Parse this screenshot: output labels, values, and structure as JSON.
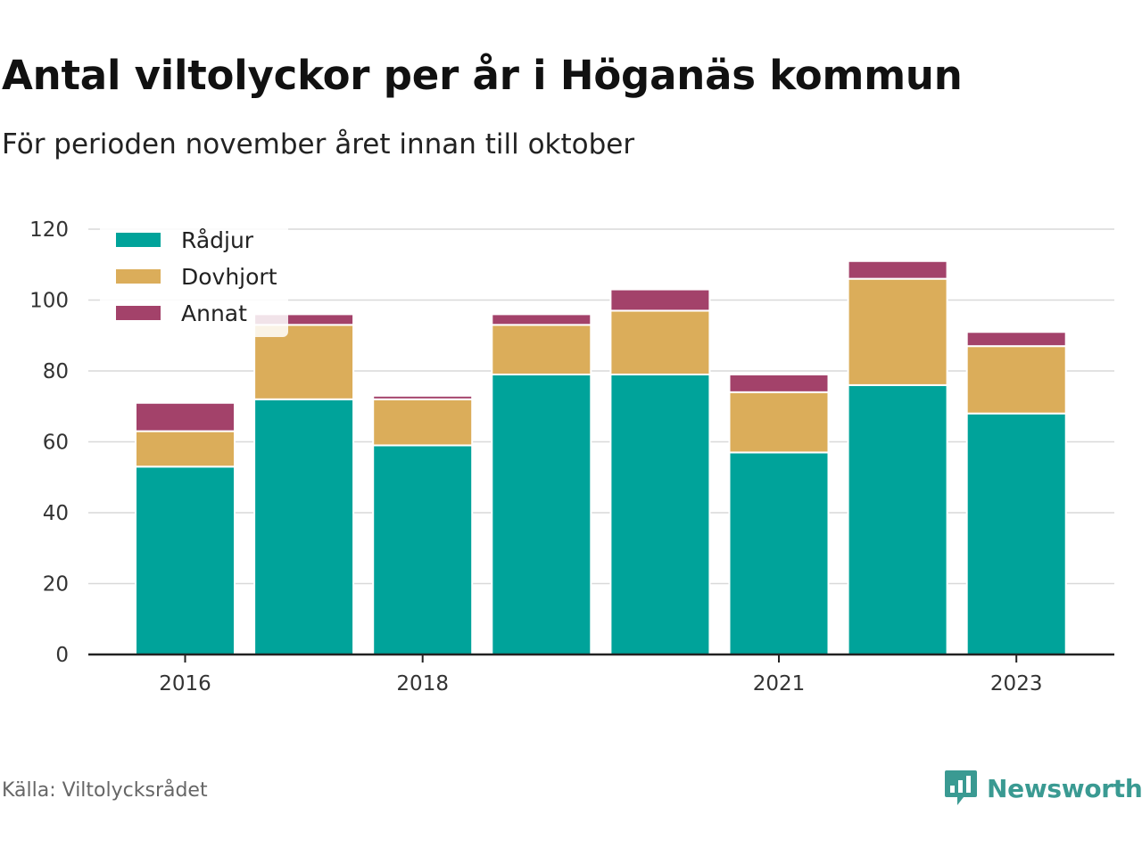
{
  "title": "Antal viltolyckor per år i Höganäs kommun",
  "subtitle": "För perioden november året innan till oktober",
  "source": "Källa: Viltolycksrådet",
  "brand": {
    "name": "Newsworthy",
    "logo_icon": "bar-chart-speech-bubble-icon"
  },
  "colors": {
    "Rådjur": "#00a39a",
    "Dovhjort": "#dbad5a",
    "Annat": "#a3426a",
    "axis": "#222222",
    "grid": "#d9d9d9"
  },
  "chart_data": {
    "type": "bar",
    "stacked": true,
    "categories": [
      "2016",
      "2017",
      "2018",
      "2019",
      "2020",
      "2021",
      "2022",
      "2023"
    ],
    "x_tick_labels": [
      "2016",
      "",
      "2018",
      "",
      "",
      "2021",
      "",
      "2023"
    ],
    "series": [
      {
        "name": "Rådjur",
        "values": [
          53,
          72,
          59,
          79,
          79,
          57,
          76,
          68
        ]
      },
      {
        "name": "Dovhjort",
        "values": [
          10,
          21,
          13,
          14,
          18,
          17,
          30,
          19
        ]
      },
      {
        "name": "Annat",
        "values": [
          8,
          3,
          1,
          3,
          6,
          5,
          5,
          4
        ]
      }
    ],
    "ylim": [
      0,
      120
    ],
    "yticks": [
      0,
      20,
      40,
      60,
      80,
      100,
      120
    ],
    "grid": true,
    "legend_position": "top-left"
  }
}
